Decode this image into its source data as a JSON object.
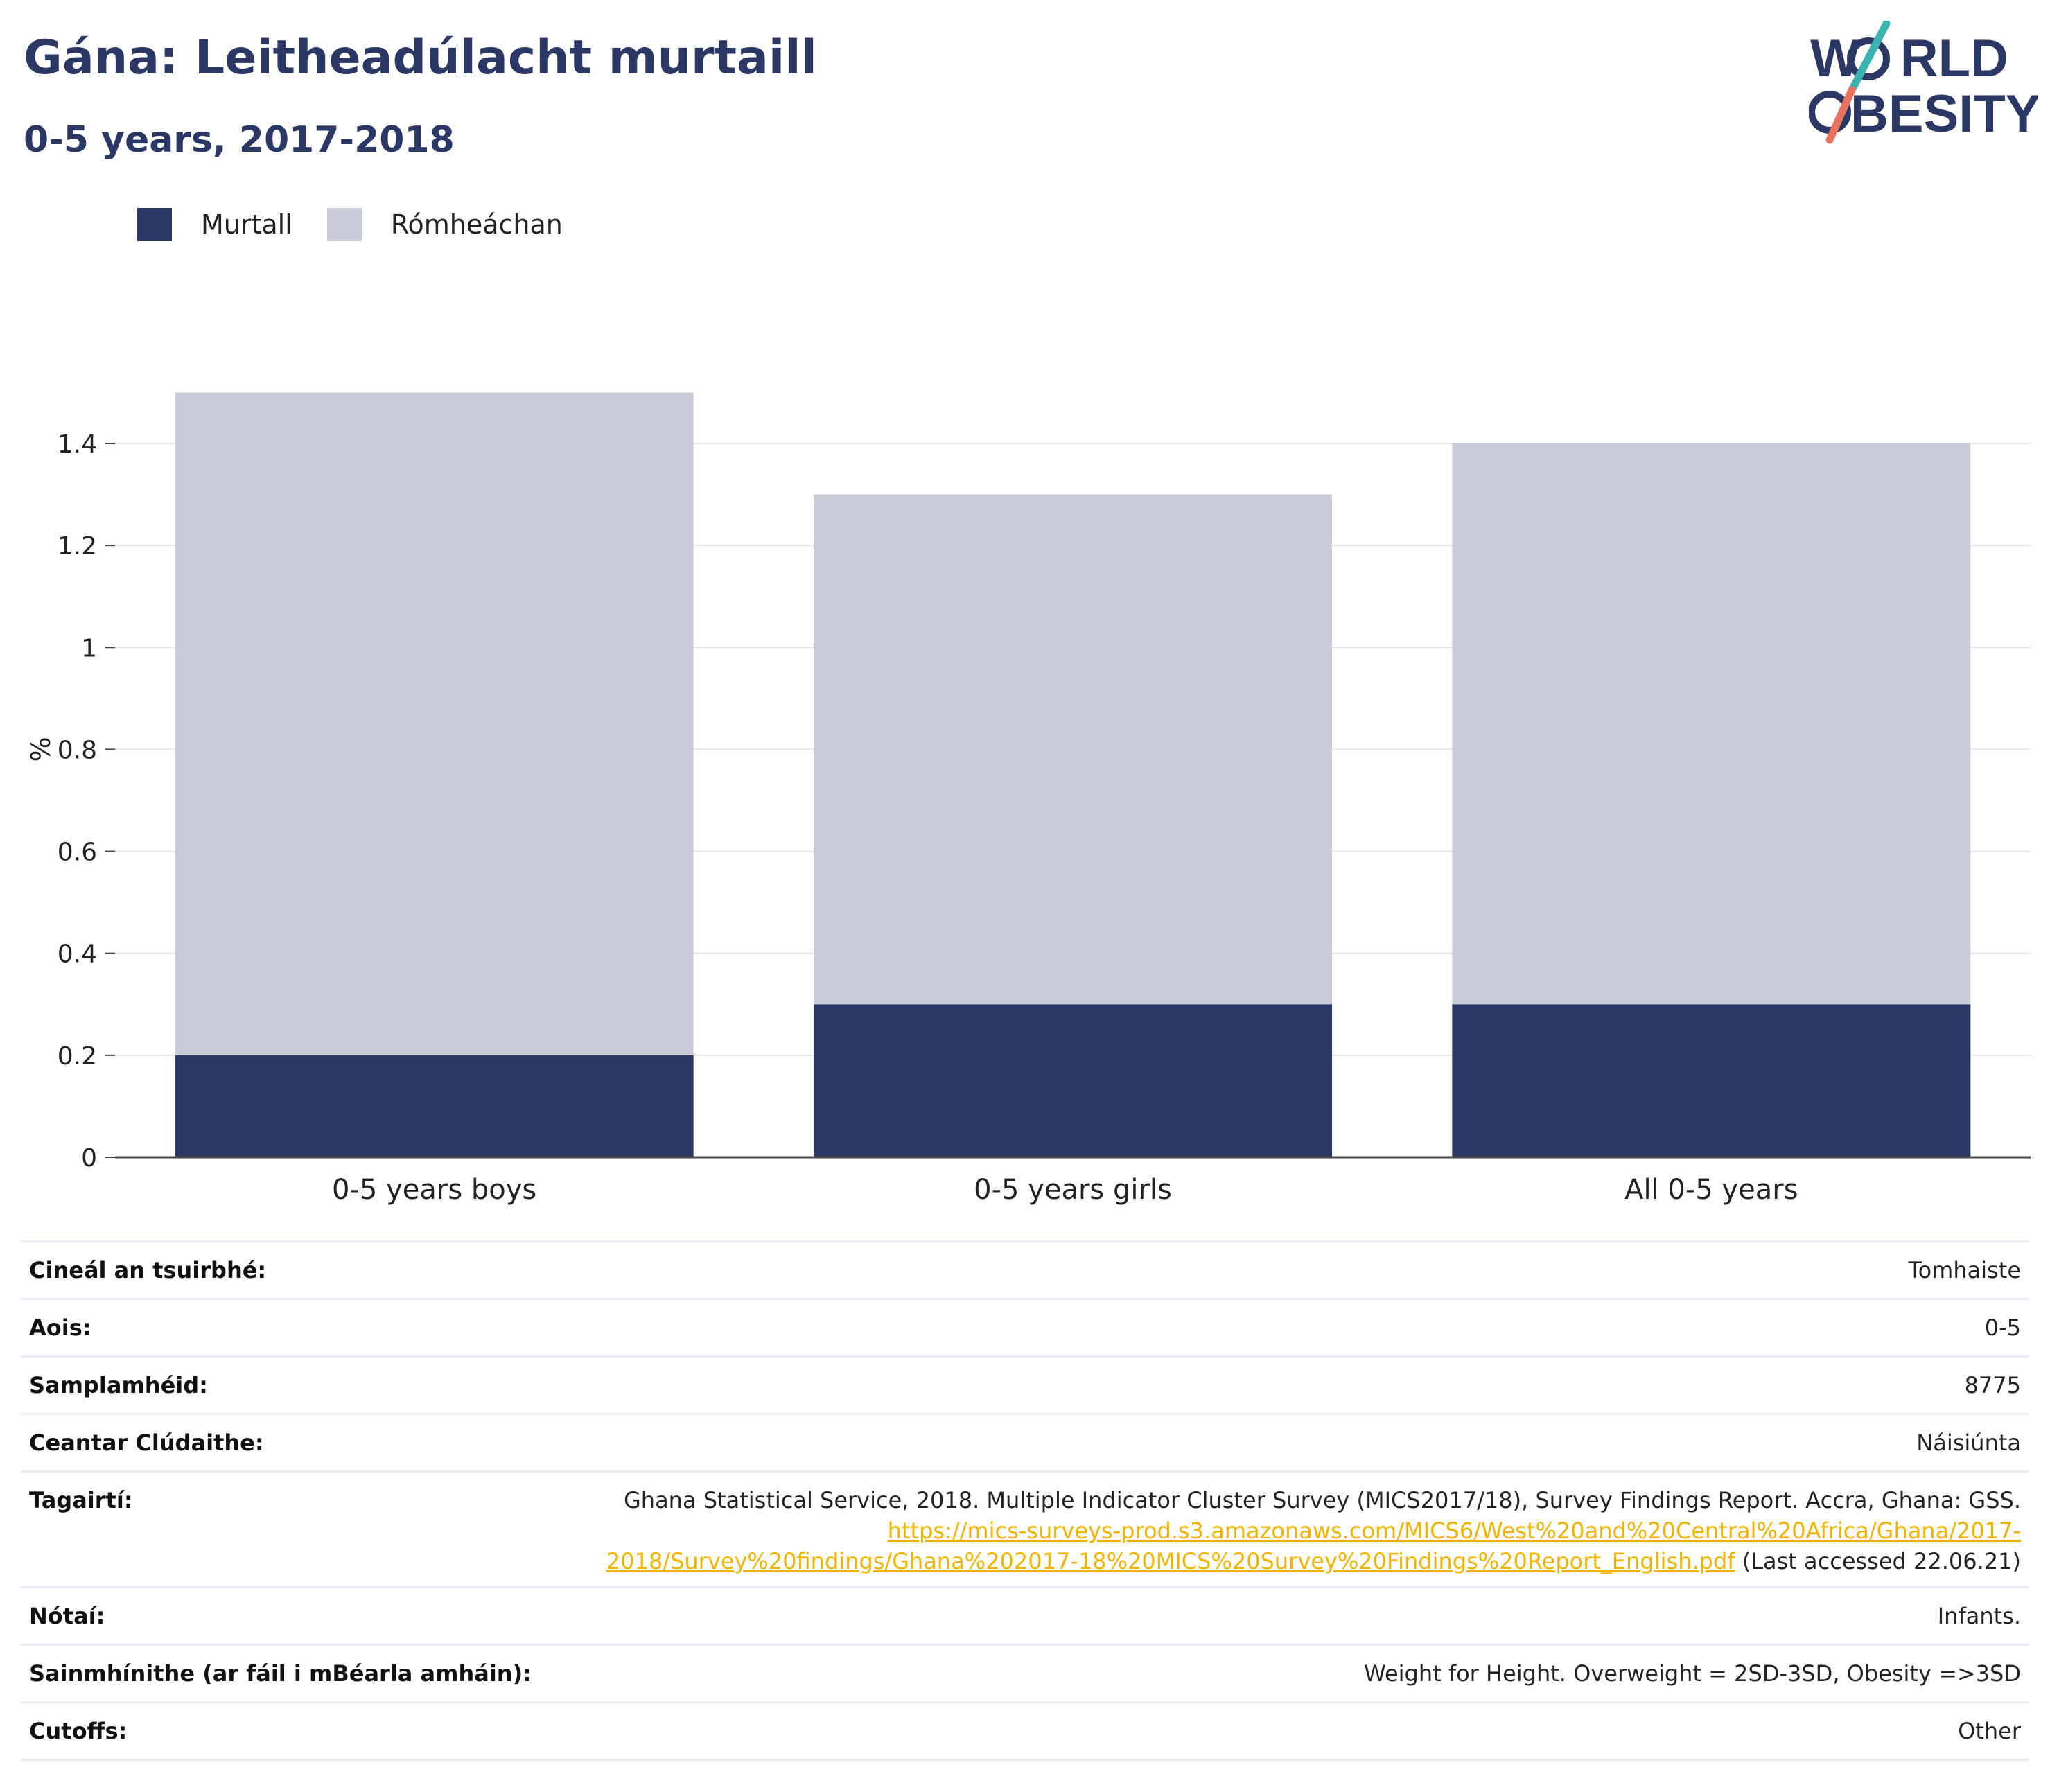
{
  "header": {
    "title": "Gána: Leitheadúlacht murtaill",
    "subtitle": "0-5 years, 2017-2018"
  },
  "logo": {
    "line1": "W RLD",
    "line2": "BESITY",
    "text": "WORLD OBESITY",
    "colors": {
      "navy": "#2b3764",
      "teal": "#3bb3b0",
      "coral": "#e8735e"
    }
  },
  "legend": [
    {
      "label": "Murtall",
      "color": "#2b3764"
    },
    {
      "label": "Rómheáchan",
      "color": "#c9ccd8"
    }
  ],
  "chart_data": {
    "type": "bar",
    "stacked": true,
    "categories": [
      "0-5 years boys",
      "0-5 years girls",
      "All 0-5 years"
    ],
    "series": [
      {
        "name": "Murtall",
        "color": "#2b3764",
        "values": [
          0.2,
          0.3,
          0.3
        ]
      },
      {
        "name": "Rómheáchan",
        "color": "#c9ccd8",
        "values": [
          1.3,
          1.0,
          1.1
        ]
      }
    ],
    "ylabel": "%",
    "ylim": [
      0,
      1.5
    ],
    "yticks": [
      0,
      0.2,
      0.4,
      0.6,
      0.8,
      1,
      1.2,
      1.4
    ],
    "ytick_labels": [
      "0",
      "0.2",
      "0.4",
      "0.6",
      "0.8",
      "1",
      "1.2",
      "1.4"
    ],
    "grid": true,
    "legend_position": "top-left"
  },
  "info": {
    "survey_type": {
      "label": "Cineál an tsuirbhé:",
      "value": "Tomhaiste"
    },
    "age": {
      "label": "Aois:",
      "value": "0-5"
    },
    "sample": {
      "label": "Samplamhéid:",
      "value": "8775"
    },
    "area": {
      "label": "Ceantar Clúdaithe:",
      "value": "Náisiúnta"
    },
    "refs": {
      "label": "Tagairtí:",
      "text": "Ghana Statistical Service, 2018. Multiple Indicator Cluster Survey (MICS2017/18), Survey Findings Report. Accra, Ghana: GSS.",
      "link_line1": "https://mics-surveys-prod.s3.amazonaws.com/MICS6/West%20and%20Central%20Africa/Ghana/2017-",
      "link_line2": "2018/Survey%20findings/Ghana%202017-18%20MICS%20Survey%20Findings%20Report_English.pdf",
      "accessed": "(Last accessed 22.06.21)"
    },
    "notes": {
      "label": "Nótaí:",
      "value": "Infants."
    },
    "definitions": {
      "label": "Sainmhínithe (ar fáil i mBéarla amháin):",
      "value": "Weight for Height. Overweight = 2SD-3SD, Obesity =>3SD"
    },
    "cutoffs": {
      "label": "Cutoffs:",
      "value": "Other"
    }
  }
}
